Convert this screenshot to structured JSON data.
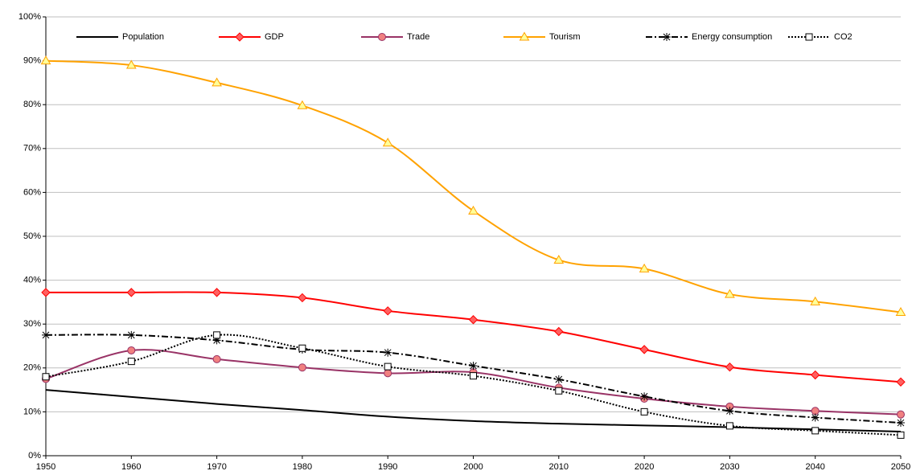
{
  "chart_data": {
    "type": "line",
    "x": [
      1950,
      1960,
      1970,
      1980,
      1990,
      2000,
      2010,
      2020,
      2030,
      2040,
      2050
    ],
    "xlim": [
      1950,
      2050
    ],
    "xticks": [
      1950,
      1960,
      1970,
      1980,
      1990,
      2000,
      2010,
      2020,
      2030,
      2040,
      2050
    ],
    "ylim": [
      0,
      100
    ],
    "yticks": [
      {
        "value": 0,
        "label": "0%"
      },
      {
        "value": 10,
        "label": "10%"
      },
      {
        "value": 20,
        "label": "20%"
      },
      {
        "value": 30,
        "label": "30%"
      },
      {
        "value": 40,
        "label": "40%"
      },
      {
        "value": 50,
        "label": "50%"
      },
      {
        "value": 60,
        "label": "60%"
      },
      {
        "value": 70,
        "label": "70%"
      },
      {
        "value": 80,
        "label": "80%"
      },
      {
        "value": 90,
        "label": "90%"
      },
      {
        "value": 100,
        "label": "100%"
      }
    ],
    "grid": true,
    "legend": "top",
    "series": [
      {
        "name": "Population",
        "color": "#000000",
        "dash": "solid",
        "marker": "none",
        "values": [
          15,
          13.4,
          11.8,
          10.4,
          8.9,
          7.9,
          7.3,
          6.9,
          6.5,
          6.0,
          5.5
        ]
      },
      {
        "name": "GDP",
        "color": "#ff0000",
        "dash": "solid",
        "marker": "diamond",
        "values": [
          37.2,
          37.2,
          37.2,
          36,
          33,
          31,
          28.3,
          24.2,
          20.2,
          18.4,
          16.8
        ]
      },
      {
        "name": "Trade",
        "color": "#993366",
        "dash": "solid",
        "marker": "circle",
        "values": [
          17.5,
          24,
          22,
          20.1,
          18.8,
          19,
          15.5,
          13,
          11.2,
          10.2,
          9.4
        ]
      },
      {
        "name": "Tourism",
        "color": "#ffa200",
        "dash": "solid",
        "marker": "triangle",
        "values": [
          90,
          89,
          85,
          79.8,
          71.3,
          55.8,
          44.6,
          42.6,
          36.8,
          35.1,
          32.7
        ]
      },
      {
        "name": "Energy consumption",
        "color": "#000000",
        "dash": "dashdot",
        "marker": "star",
        "values": [
          27.5,
          27.5,
          26.3,
          24.2,
          23.5,
          20.5,
          17.4,
          13.5,
          10.2,
          8.7,
          7.5
        ]
      },
      {
        "name": "CO2",
        "color": "#000000",
        "dash": "dotted",
        "marker": "square",
        "values": [
          18,
          21.5,
          27.5,
          24.5,
          20.3,
          18.2,
          14.8,
          10,
          6.8,
          5.7,
          4.7
        ]
      }
    ]
  }
}
